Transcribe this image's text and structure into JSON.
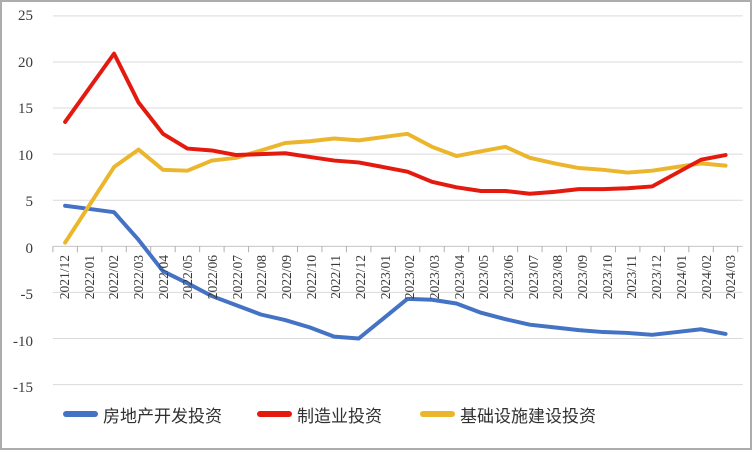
{
  "chart_data": {
    "type": "line",
    "title": "",
    "xlabel": "",
    "ylabel": "",
    "categories": [
      "2021/12",
      "2022/01",
      "2022/02",
      "2022/03",
      "2022/04",
      "2022/05",
      "2022/06",
      "2022/07",
      "2022/08",
      "2022/09",
      "2022/10",
      "2022/11",
      "2022/12",
      "2023/01",
      "2023/02",
      "2023/03",
      "2023/04",
      "2023/05",
      "2023/06",
      "2023/07",
      "2023/08",
      "2023/09",
      "2023/10",
      "2023/11",
      "2023/12",
      "2024/01",
      "2024/02",
      "2024/03"
    ],
    "series": [
      {
        "name": "房地产开发投资",
        "color": "#4472C4",
        "values": [
          4.4,
          4.05,
          3.7,
          0.7,
          -2.7,
          -4.0,
          -5.4,
          -6.4,
          -7.4,
          -8.0,
          -8.8,
          -9.8,
          -10.0,
          -7.85,
          -5.7,
          -5.8,
          -6.2,
          -7.2,
          -7.9,
          -8.5,
          -8.8,
          -9.1,
          -9.3,
          -9.4,
          -9.6,
          -9.3,
          -9.0,
          -9.5
        ]
      },
      {
        "name": "制造业投资",
        "color": "#E41A0F",
        "values": [
          13.5,
          17.2,
          20.9,
          15.6,
          12.2,
          10.6,
          10.4,
          9.9,
          10.0,
          10.1,
          9.7,
          9.3,
          9.1,
          8.6,
          8.1,
          7.0,
          6.4,
          6.0,
          6.0,
          5.7,
          5.9,
          6.2,
          6.2,
          6.3,
          6.5,
          7.95,
          9.4,
          9.9
        ]
      },
      {
        "name": "基础设施建设投资",
        "color": "#EBB62C",
        "values": [
          0.4,
          4.5,
          8.6,
          10.5,
          8.3,
          8.2,
          9.3,
          9.6,
          10.4,
          11.2,
          11.4,
          11.7,
          11.5,
          11.85,
          12.2,
          10.8,
          9.8,
          10.3,
          10.8,
          9.6,
          9.0,
          8.5,
          8.3,
          8.0,
          8.2,
          8.6,
          9.0,
          8.75
        ]
      }
    ],
    "ylim": [
      -15,
      25
    ],
    "yticks": [
      25,
      20,
      15,
      10,
      5,
      0,
      -5,
      -10,
      -15
    ],
    "ytick_labels": [
      "25",
      "20",
      "15",
      "10",
      "5",
      "0",
      "-5",
      "-10",
      "-15"
    ],
    "grid": true,
    "legend_position": "bottom",
    "x_label_rotation": -90
  },
  "colors": {
    "gridline": "#D9D9D9",
    "axis": "#BDBDBD",
    "tick": "#B0B0B0",
    "axis_text": "#3A3A3A",
    "legend_text": "#303030",
    "border": "#ADADAD",
    "background": "#FFFFFF"
  }
}
